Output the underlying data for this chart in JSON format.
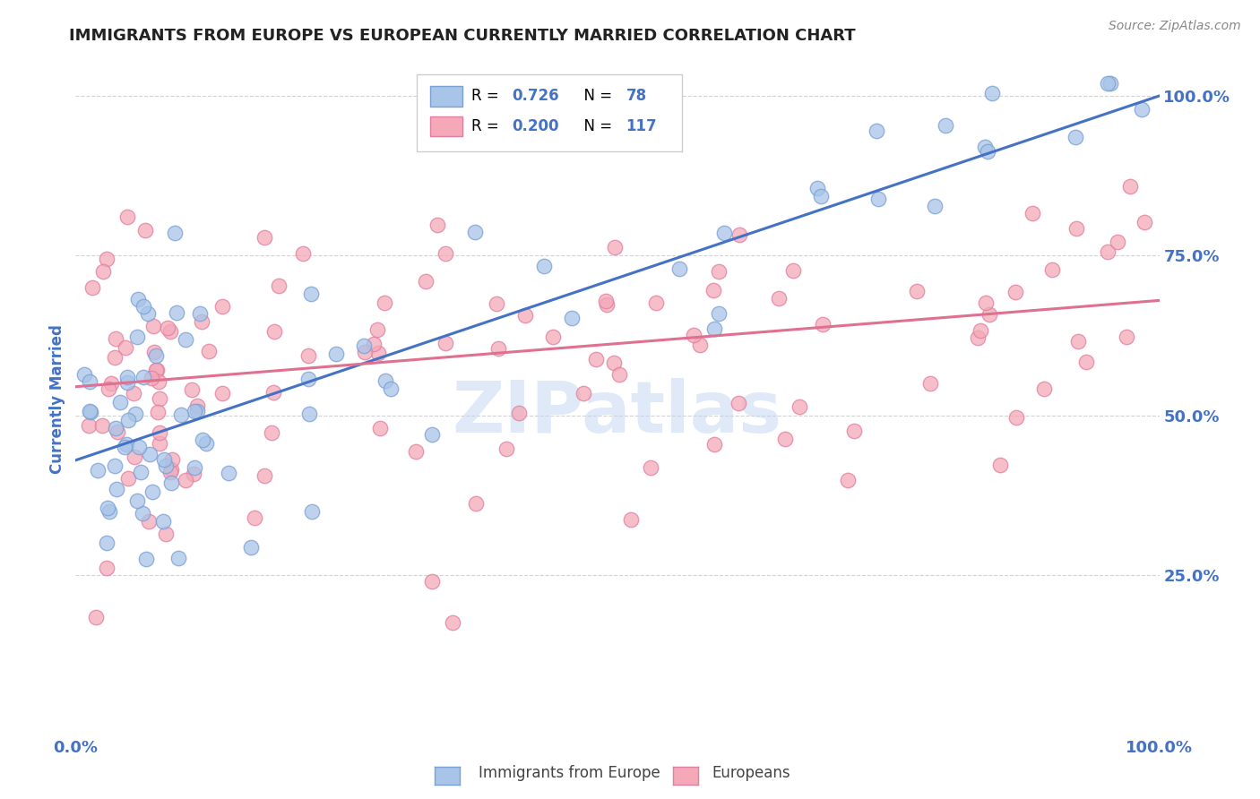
{
  "title": "IMMIGRANTS FROM EUROPE VS EUROPEAN CURRENTLY MARRIED CORRELATION CHART",
  "source_text": "Source: ZipAtlas.com",
  "ylabel": "Currently Married",
  "watermark": "ZIPatlas",
  "xmin": 0.0,
  "xmax": 1.0,
  "ymin": 0.0,
  "ymax": 1.05,
  "blue_R": 0.726,
  "blue_N": 78,
  "pink_R": 0.2,
  "pink_N": 117,
  "blue_color": "#a8c4e8",
  "pink_color": "#f4a8b8",
  "blue_edge_color": "#7aa0d4",
  "pink_edge_color": "#e080a0",
  "blue_line_color": "#4472c4",
  "pink_line_color": "#e07090",
  "background_color": "#ffffff",
  "grid_color": "#c8c8c8",
  "axis_label_color": "#4472c4",
  "tick_label_color": "#4472c4",
  "title_color": "#222222",
  "legend_R_color": "#000000",
  "legend_val_color": "#4472c4",
  "source_color": "#888888",
  "watermark_color": "#c0d4f0"
}
